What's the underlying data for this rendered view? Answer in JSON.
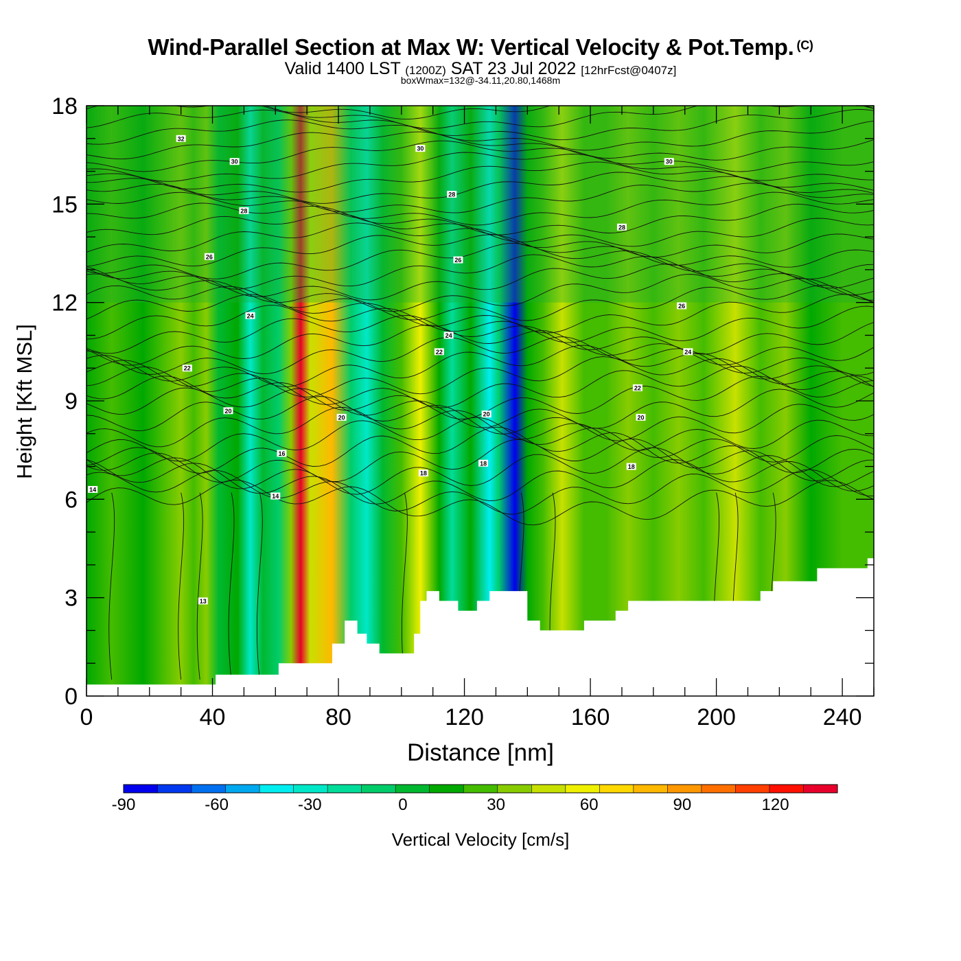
{
  "header": {
    "title": "Wind-Parallel Section at Max W: Vertical Velocity & Pot.Temp.",
    "title_mark": "(C)",
    "valid_main": "Valid 1400 LST",
    "valid_z": "(1200Z)",
    "valid_date": "SAT 23 Jul 2022",
    "valid_fcst": "[12hrFcst@0407z]",
    "box": "boxWmax=132@-34.11,20.80,1468m"
  },
  "chart_data": {
    "type": "heatmap",
    "xlabel": "Distance [nm]",
    "ylabel": "Height [Kft MSL]",
    "xlim": [
      0,
      250
    ],
    "ylim": [
      0,
      18
    ],
    "x_ticks": [
      "0",
      "40",
      "80",
      "120",
      "160",
      "200",
      "240"
    ],
    "y_ticks": [
      "0",
      "3",
      "6",
      "9",
      "12",
      "15",
      "18"
    ],
    "colorbar": {
      "label": "Vertical Velocity [cm/s]",
      "min": -90,
      "max": 140,
      "step": 10,
      "ticks": [
        "-90",
        "-60",
        "-30",
        "0",
        "30",
        "60",
        "90",
        "120"
      ],
      "colors": [
        "#0000ee",
        "#0038f0",
        "#0070f0",
        "#00a8f0",
        "#00eef0",
        "#00e8c8",
        "#00dc9a",
        "#00cc6a",
        "#00b830",
        "#00a800",
        "#44bc00",
        "#88cc00",
        "#c8e000",
        "#eef000",
        "#ffd800",
        "#ffb800",
        "#ff9800",
        "#ff7000",
        "#ff4000",
        "#ff1000",
        "#e8002a"
      ]
    },
    "vertical_velocity_columns": [
      {
        "x": 0,
        "w": 2
      },
      {
        "x": 8,
        "w": 10
      },
      {
        "x": 18,
        "w": 2
      },
      {
        "x": 24,
        "w": 18
      },
      {
        "x": 30,
        "w": 28
      },
      {
        "x": 34,
        "w": 12
      },
      {
        "x": 38,
        "w": 22
      },
      {
        "x": 42,
        "w": -5
      },
      {
        "x": 48,
        "w": 6
      },
      {
        "x": 52,
        "w": -32
      },
      {
        "x": 56,
        "w": -4
      },
      {
        "x": 61,
        "w": -18
      },
      {
        "x": 65,
        "w": 20
      },
      {
        "x": 68,
        "w": 132
      },
      {
        "x": 71,
        "w": 30
      },
      {
        "x": 78,
        "w": 62
      },
      {
        "x": 84,
        "w": -20
      },
      {
        "x": 89,
        "w": -38
      },
      {
        "x": 94,
        "w": -6
      },
      {
        "x": 100,
        "w": 12
      },
      {
        "x": 106,
        "w": 46
      },
      {
        "x": 112,
        "w": 4
      },
      {
        "x": 116,
        "w": -25
      },
      {
        "x": 122,
        "w": 2
      },
      {
        "x": 128,
        "w": -42
      },
      {
        "x": 131,
        "w": -15
      },
      {
        "x": 136,
        "w": -95
      },
      {
        "x": 140,
        "w": 8
      },
      {
        "x": 145,
        "w": 18
      },
      {
        "x": 151,
        "w": 30
      },
      {
        "x": 158,
        "w": 14
      },
      {
        "x": 165,
        "w": 10
      },
      {
        "x": 172,
        "w": 24
      },
      {
        "x": 180,
        "w": 12
      },
      {
        "x": 188,
        "w": 24
      },
      {
        "x": 196,
        "w": 12
      },
      {
        "x": 206,
        "w": 30
      },
      {
        "x": 214,
        "w": 10
      },
      {
        "x": 222,
        "w": 20
      },
      {
        "x": 230,
        "w": 8
      },
      {
        "x": 240,
        "w": 16
      },
      {
        "x": 250,
        "w": 10
      }
    ],
    "terrain": [
      [
        0,
        0.35
      ],
      [
        10,
        0.35
      ],
      [
        20,
        0.35
      ],
      [
        30,
        0.35
      ],
      [
        40,
        0.35
      ],
      [
        41,
        0.65
      ],
      [
        60,
        0.65
      ],
      [
        61,
        1.0
      ],
      [
        70,
        1.0
      ],
      [
        77,
        1.0
      ],
      [
        78,
        1.6
      ],
      [
        82,
        2.3
      ],
      [
        86,
        1.9
      ],
      [
        89,
        1.6
      ],
      [
        93,
        1.3
      ],
      [
        101,
        1.3
      ],
      [
        104,
        1.9
      ],
      [
        106,
        2.9
      ],
      [
        108,
        3.2
      ],
      [
        112,
        2.9
      ],
      [
        118,
        2.6
      ],
      [
        124,
        2.9
      ],
      [
        128,
        3.2
      ],
      [
        134,
        3.2
      ],
      [
        140,
        2.3
      ],
      [
        144,
        2.0
      ],
      [
        158,
        2.3
      ],
      [
        168,
        2.6
      ],
      [
        172,
        2.9
      ],
      [
        190,
        2.9
      ],
      [
        210,
        2.9
      ],
      [
        214,
        3.2
      ],
      [
        218,
        3.5
      ],
      [
        226,
        3.5
      ],
      [
        232,
        3.9
      ],
      [
        246,
        3.9
      ],
      [
        248,
        4.2
      ],
      [
        250,
        4.2
      ]
    ],
    "theta_contours": [
      {
        "label": "14",
        "base": 6.0,
        "at": [
          [
            2,
            6.3
          ],
          [
            60,
            6.1
          ]
        ]
      },
      {
        "label": "16",
        "base": 6.9,
        "at": [
          [
            62,
            7.4
          ]
        ]
      },
      {
        "label": "18",
        "base": 7.5,
        "at": [
          [
            107,
            6.8
          ],
          [
            126,
            7.1
          ],
          [
            173,
            7.0
          ]
        ]
      },
      {
        "label": "20",
        "base": 8.7,
        "at": [
          [
            45,
            8.7
          ],
          [
            81,
            8.5
          ],
          [
            127,
            8.6
          ],
          [
            176,
            8.5
          ]
        ]
      },
      {
        "label": "22",
        "base": 9.8,
        "at": [
          [
            32,
            10.0
          ],
          [
            112,
            10.5
          ],
          [
            175,
            9.4
          ]
        ]
      },
      {
        "label": "24",
        "base": 11.4,
        "at": [
          [
            52,
            11.6
          ],
          [
            115,
            11.0
          ],
          [
            191,
            10.5
          ]
        ]
      },
      {
        "label": "26",
        "base": 12.6,
        "at": [
          [
            39,
            13.4
          ],
          [
            118,
            13.3
          ],
          [
            189,
            11.9
          ]
        ]
      },
      {
        "label": "28",
        "base": 14.7,
        "at": [
          [
            50,
            14.8
          ],
          [
            116,
            15.3
          ],
          [
            170,
            14.3
          ]
        ]
      },
      {
        "label": "30",
        "base": 16.3,
        "at": [
          [
            47,
            16.3
          ],
          [
            106,
            16.7
          ],
          [
            185,
            16.3
          ]
        ]
      },
      {
        "label": "32",
        "base": 17.0,
        "at": [
          [
            30,
            17.0
          ]
        ]
      },
      {
        "label": "13",
        "base": 2.8,
        "at": [
          [
            37,
            2.9
          ]
        ]
      }
    ]
  }
}
